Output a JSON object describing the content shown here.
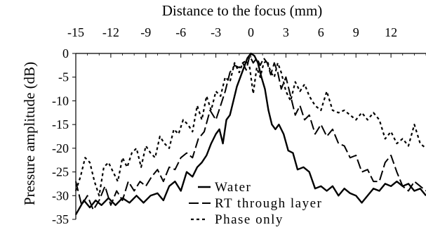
{
  "chart_data": {
    "type": "line",
    "title": "",
    "xlabel": "Distance to the focus (mm)",
    "ylabel": "Pressure amplitude (dB)",
    "xlim": [
      -15,
      15
    ],
    "ylim": [
      -35,
      0
    ],
    "x_ticks": [
      -15,
      -12,
      -9,
      -6,
      -3,
      0,
      3,
      6,
      9,
      12
    ],
    "y_ticks": [
      0,
      -5,
      -10,
      -15,
      -20,
      -25,
      -30,
      -35
    ],
    "x_axis_position": "top",
    "grid": false,
    "legend_position": "bottom-center",
    "series": [
      {
        "name": "Water",
        "style": "solid",
        "color": "#000000",
        "x": [
          -15,
          -14.3,
          -13.8,
          -13.3,
          -12.8,
          -12.2,
          -11.6,
          -11,
          -10.4,
          -9.8,
          -9.2,
          -8.6,
          -8,
          -7.5,
          -7,
          -6.5,
          -6,
          -5.5,
          -5,
          -4.6,
          -4.2,
          -3.8,
          -3.4,
          -3,
          -2.7,
          -2.4,
          -2.1,
          -1.8,
          -1.5,
          -1.2,
          -0.9,
          -0.6,
          -0.3,
          0,
          0.3,
          0.6,
          0.9,
          1.2,
          1.5,
          1.8,
          2.1,
          2.4,
          2.8,
          3.2,
          3.6,
          4,
          4.5,
          5,
          5.5,
          6,
          6.5,
          7,
          7.5,
          8,
          8.5,
          9,
          9.5,
          10,
          10.5,
          11,
          11.5,
          12,
          12.5,
          13,
          13.5,
          14,
          14.5,
          15
        ],
        "y": [
          -34,
          -31,
          -32.5,
          -31,
          -32,
          -30.5,
          -32,
          -30.5,
          -31.5,
          -30,
          -31.5,
          -30,
          -29.5,
          -31,
          -28,
          -27,
          -29,
          -25,
          -26,
          -24,
          -23,
          -21.5,
          -19,
          -17,
          -16,
          -19,
          -14,
          -13,
          -10,
          -7,
          -5,
          -3,
          -1,
          0,
          -0.5,
          -2,
          -5,
          -7.5,
          -12,
          -15,
          -16,
          -15,
          -17,
          -20.5,
          -21,
          -24.5,
          -24,
          -25,
          -28.5,
          -28,
          -29,
          -28,
          -30,
          -28.5,
          -29.5,
          -30,
          -31.5,
          -30,
          -28.5,
          -29,
          -27.5,
          -28,
          -27,
          -28,
          -27.5,
          -29,
          -28.5,
          -30
        ]
      },
      {
        "name": "RT through layer",
        "style": "long-dash",
        "color": "#000000",
        "x": [
          -15,
          -14.5,
          -14,
          -13.5,
          -13,
          -12.5,
          -12,
          -11.5,
          -11,
          -10.5,
          -10,
          -9.5,
          -9,
          -8.5,
          -8,
          -7.5,
          -7,
          -6.5,
          -6,
          -5.5,
          -5,
          -4.5,
          -4,
          -3.5,
          -3,
          -2.6,
          -2.2,
          -1.8,
          -1.4,
          -1,
          -0.7,
          -0.4,
          -0.1,
          0.2,
          0.5,
          0.8,
          1.1,
          1.4,
          1.7,
          2,
          2.3,
          2.6,
          3,
          3.4,
          3.8,
          4.2,
          4.6,
          5,
          5.5,
          6,
          6.5,
          7,
          7.5,
          8,
          8.5,
          9,
          9.5,
          10,
          10.5,
          11,
          11.5,
          12,
          12.5,
          13,
          13.5,
          14,
          14.5,
          15
        ],
        "y": [
          -27,
          -32,
          -30,
          -33,
          -31,
          -28,
          -32,
          -29,
          -31,
          -27,
          -29,
          -27,
          -28,
          -26,
          -24.5,
          -27,
          -24,
          -24.5,
          -22,
          -21,
          -22,
          -18,
          -16.5,
          -12,
          -14,
          -11,
          -8,
          -4,
          -2.5,
          -3,
          -2,
          -3.5,
          -0.5,
          -2,
          -1,
          -2.5,
          -1,
          -2,
          -4.5,
          -2,
          -4,
          -7.5,
          -5,
          -9,
          -13,
          -11,
          -14,
          -13,
          -17,
          -15,
          -17.5,
          -16,
          -19,
          -19.5,
          -22,
          -21.5,
          -25,
          -24.5,
          -27,
          -27,
          -23,
          -21.5,
          -25,
          -28,
          -29,
          -27,
          -28,
          -29
        ]
      },
      {
        "name": "Phase only",
        "style": "short-dash",
        "color": "#000000",
        "x": [
          -15,
          -14.6,
          -14.2,
          -13.8,
          -13.4,
          -13,
          -12.6,
          -12.2,
          -11.8,
          -11.4,
          -11,
          -10.6,
          -10.2,
          -9.8,
          -9.4,
          -9,
          -8.6,
          -8.2,
          -7.8,
          -7.4,
          -7,
          -6.6,
          -6.2,
          -5.8,
          -5.4,
          -5,
          -4.6,
          -4.2,
          -3.8,
          -3.4,
          -3,
          -2.6,
          -2.2,
          -1.8,
          -1.4,
          -1,
          -0.7,
          -0.4,
          -0.1,
          0.2,
          0.5,
          0.8,
          1.1,
          1.4,
          1.7,
          2,
          2.3,
          2.6,
          3,
          3.4,
          3.8,
          4.2,
          4.6,
          5,
          5.5,
          6,
          6.5,
          7,
          7.5,
          8,
          8.5,
          9,
          9.5,
          10,
          10.5,
          11,
          11.5,
          12,
          12.5,
          13,
          13.5,
          14,
          14.5,
          15
        ],
        "y": [
          -29,
          -26,
          -22,
          -23,
          -27,
          -30,
          -24,
          -23,
          -25,
          -27,
          -22,
          -24,
          -21,
          -20,
          -24,
          -19.5,
          -21,
          -22,
          -17.5,
          -19,
          -20,
          -16,
          -17,
          -14,
          -15,
          -16.5,
          -11,
          -14,
          -9,
          -12,
          -8,
          -9,
          -5,
          -6,
          -2,
          -4,
          -2,
          -1.5,
          -3,
          -8.5,
          -3,
          -5,
          -2,
          -1.5,
          -4,
          -5,
          -2,
          -4,
          -8,
          -10,
          -6,
          -8,
          -6.5,
          -9,
          -11,
          -12,
          -8,
          -12,
          -12.5,
          -12,
          -13,
          -14,
          -12.5,
          -14,
          -12.5,
          -14,
          -18,
          -16.5,
          -19,
          -18,
          -19.5,
          -15,
          -19,
          -20
        ]
      }
    ]
  }
}
